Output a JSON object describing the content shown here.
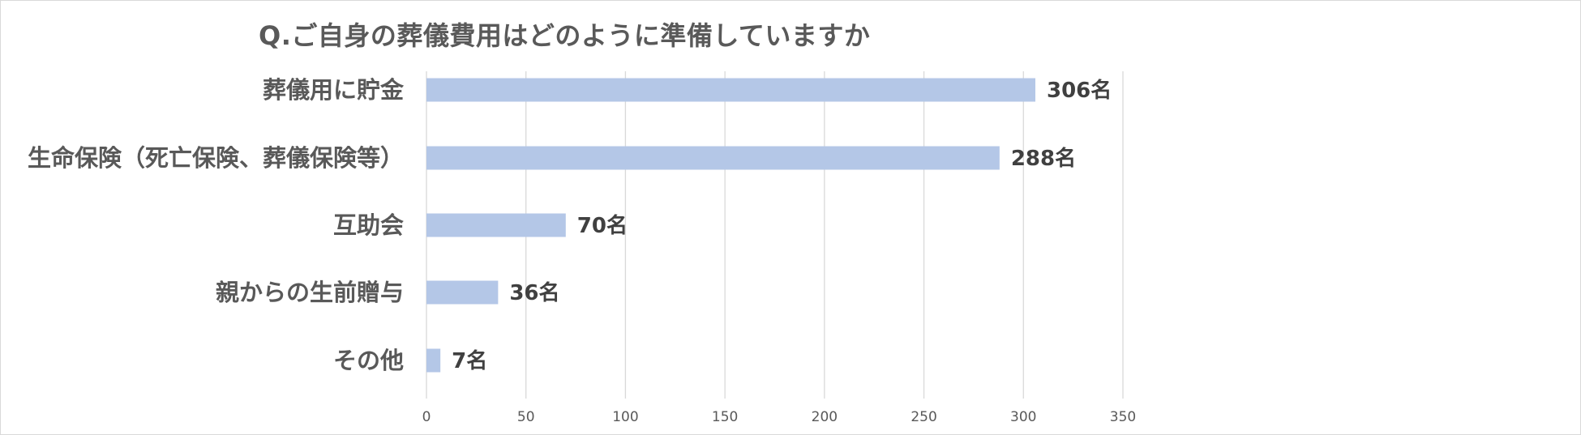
{
  "chart_data": {
    "type": "bar",
    "orientation": "horizontal",
    "title": "Q.ご自身の葬儀費用はどのように準備していますか",
    "categories": [
      "葬儀用に貯金",
      "生命保険（死亡保険、葬儀保険等）",
      "互助会",
      "親からの生前贈与",
      "その他"
    ],
    "values": [
      306,
      288,
      70,
      36,
      7
    ],
    "data_labels": [
      "306名",
      "288名",
      "70名",
      "36名",
      "7名"
    ],
    "x_ticks": [
      "0",
      "50",
      "100",
      "150",
      "200",
      "250",
      "300",
      "350"
    ],
    "xlim": [
      0,
      350
    ],
    "grid": "vertical",
    "legend": "none",
    "bar_color": "#b4c7e7"
  }
}
